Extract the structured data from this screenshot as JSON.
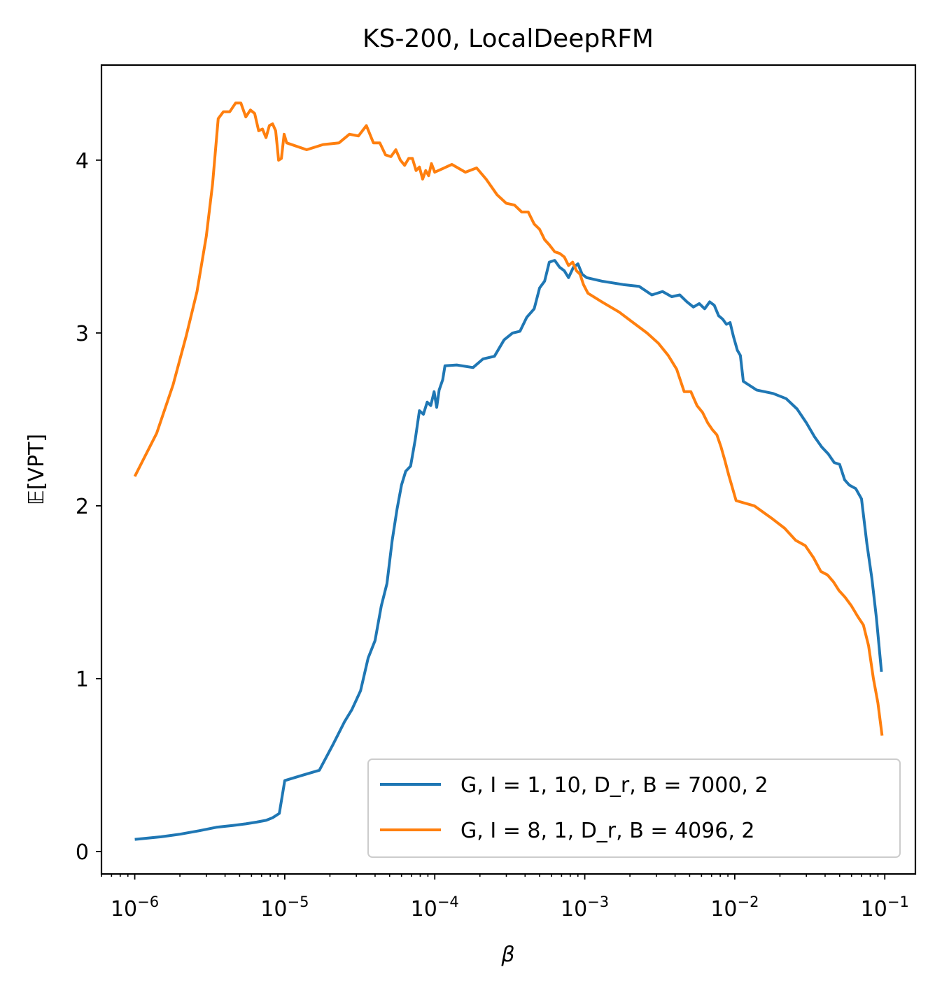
{
  "chart_data": {
    "type": "line",
    "title": "KS-200, LocalDeepRFM",
    "xlabel": "β",
    "ylabel": "𝔼[VPT]",
    "xscale": "log",
    "xlim": [
      6e-07,
      0.16
    ],
    "ylim": [
      -0.13,
      4.55
    ],
    "x_ticks": [
      {
        "value": 1e-06,
        "base": "10",
        "exp": "−6"
      },
      {
        "value": 1e-05,
        "base": "10",
        "exp": "−5"
      },
      {
        "value": 0.0001,
        "base": "10",
        "exp": "−4"
      },
      {
        "value": 0.001,
        "base": "10",
        "exp": "−3"
      },
      {
        "value": 0.01,
        "base": "10",
        "exp": "−2"
      },
      {
        "value": 0.1,
        "base": "10",
        "exp": "−1"
      }
    ],
    "y_ticks": [
      {
        "value": 0,
        "label": "0"
      },
      {
        "value": 1,
        "label": "1"
      },
      {
        "value": 2,
        "label": "2"
      },
      {
        "value": 3,
        "label": "3"
      },
      {
        "value": 4,
        "label": "4"
      }
    ],
    "grid": false,
    "legend_position": "lower right",
    "series": [
      {
        "name": "G, I = 1, 10, D_r, B = 7000, 2",
        "color": "#1f77b4",
        "points": [
          [
            1e-06,
            0.07
          ],
          [
            1.5e-06,
            0.085
          ],
          [
            2e-06,
            0.1
          ],
          [
            2.7e-06,
            0.12
          ],
          [
            3.5e-06,
            0.14
          ],
          [
            4.5e-06,
            0.15
          ],
          [
            5.5e-06,
            0.16
          ],
          [
            6.5e-06,
            0.17
          ],
          [
            7.5e-06,
            0.18
          ],
          [
            8.3e-06,
            0.195
          ],
          [
            9.2e-06,
            0.22
          ],
          [
            1e-05,
            0.41
          ],
          [
            1.3e-05,
            0.44
          ],
          [
            1.7e-05,
            0.47
          ],
          [
            2.1e-05,
            0.62
          ],
          [
            2.5e-05,
            0.75
          ],
          [
            2.8e-05,
            0.82
          ],
          [
            3.2e-05,
            0.93
          ],
          [
            3.6e-05,
            1.12
          ],
          [
            4e-05,
            1.22
          ],
          [
            4.4e-05,
            1.42
          ],
          [
            4.8e-05,
            1.55
          ],
          [
            5.2e-05,
            1.8
          ],
          [
            5.6e-05,
            1.98
          ],
          [
            6e-05,
            2.12
          ],
          [
            6.4e-05,
            2.2
          ],
          [
            6.9e-05,
            2.23
          ],
          [
            7.4e-05,
            2.38
          ],
          [
            7.9e-05,
            2.55
          ],
          [
            8.4e-05,
            2.53
          ],
          [
            8.9e-05,
            2.6
          ],
          [
            9.4e-05,
            2.58
          ],
          [
            9.9e-05,
            2.66
          ],
          [
            0.000103,
            2.57
          ],
          [
            0.000107,
            2.67
          ],
          [
            0.000113,
            2.73
          ],
          [
            0.000117,
            2.81
          ],
          [
            0.00014,
            2.815
          ],
          [
            0.00018,
            2.8
          ],
          [
            0.00021,
            2.85
          ],
          [
            0.00025,
            2.865
          ],
          [
            0.00029,
            2.96
          ],
          [
            0.00033,
            3.0
          ],
          [
            0.00037,
            3.01
          ],
          [
            0.00041,
            3.09
          ],
          [
            0.00046,
            3.14
          ],
          [
            0.0005,
            3.26
          ],
          [
            0.00054,
            3.3
          ],
          [
            0.00058,
            3.41
          ],
          [
            0.00063,
            3.42
          ],
          [
            0.00068,
            3.38
          ],
          [
            0.00073,
            3.36
          ],
          [
            0.00078,
            3.32
          ],
          [
            0.00084,
            3.38
          ],
          [
            0.0009,
            3.4
          ],
          [
            0.00096,
            3.34
          ],
          [
            0.00103,
            3.32
          ],
          [
            0.0013,
            3.3
          ],
          [
            0.0018,
            3.28
          ],
          [
            0.0023,
            3.27
          ],
          [
            0.0028,
            3.22
          ],
          [
            0.0033,
            3.24
          ],
          [
            0.0038,
            3.21
          ],
          [
            0.0043,
            3.22
          ],
          [
            0.0048,
            3.18
          ],
          [
            0.0053,
            3.15
          ],
          [
            0.0058,
            3.17
          ],
          [
            0.0063,
            3.14
          ],
          [
            0.0068,
            3.18
          ],
          [
            0.0073,
            3.16
          ],
          [
            0.0078,
            3.1
          ],
          [
            0.0083,
            3.08
          ],
          [
            0.0088,
            3.05
          ],
          [
            0.0093,
            3.06
          ],
          [
            0.0098,
            2.98
          ],
          [
            0.0104,
            2.9
          ],
          [
            0.0109,
            2.87
          ],
          [
            0.0114,
            2.72
          ],
          [
            0.014,
            2.67
          ],
          [
            0.018,
            2.65
          ],
          [
            0.022,
            2.62
          ],
          [
            0.026,
            2.56
          ],
          [
            0.03,
            2.48
          ],
          [
            0.034,
            2.4
          ],
          [
            0.038,
            2.34
          ],
          [
            0.042,
            2.3
          ],
          [
            0.046,
            2.25
          ],
          [
            0.05,
            2.24
          ],
          [
            0.054,
            2.15
          ],
          [
            0.058,
            2.12
          ],
          [
            0.064,
            2.1
          ],
          [
            0.07,
            2.04
          ],
          [
            0.076,
            1.78
          ],
          [
            0.082,
            1.58
          ],
          [
            0.088,
            1.35
          ],
          [
            0.095,
            1.04
          ]
        ]
      },
      {
        "name": "G, I = 8, 1, D_r, B = 4096, 2",
        "color": "#ff7f0e",
        "points": [
          [
            1e-06,
            2.17
          ],
          [
            1.4e-06,
            2.42
          ],
          [
            1.8e-06,
            2.7
          ],
          [
            2.2e-06,
            2.98
          ],
          [
            2.6e-06,
            3.24
          ],
          [
            3e-06,
            3.56
          ],
          [
            3.3e-06,
            3.86
          ],
          [
            3.6e-06,
            4.24
          ],
          [
            3.9e-06,
            4.28
          ],
          [
            4.3e-06,
            4.28
          ],
          [
            4.7e-06,
            4.33
          ],
          [
            5.1e-06,
            4.33
          ],
          [
            5.5e-06,
            4.25
          ],
          [
            5.9e-06,
            4.29
          ],
          [
            6.3e-06,
            4.27
          ],
          [
            6.7e-06,
            4.17
          ],
          [
            7.1e-06,
            4.18
          ],
          [
            7.5e-06,
            4.13
          ],
          [
            7.9e-06,
            4.2
          ],
          [
            8.3e-06,
            4.21
          ],
          [
            8.7e-06,
            4.17
          ],
          [
            9.1e-06,
            4.0
          ],
          [
            9.5e-06,
            4.01
          ],
          [
            9.9e-06,
            4.15
          ],
          [
            1.03e-05,
            4.1
          ],
          [
            1.4e-05,
            4.06
          ],
          [
            1.8e-05,
            4.09
          ],
          [
            2.3e-05,
            4.1
          ],
          [
            2.7e-05,
            4.15
          ],
          [
            3.1e-05,
            4.14
          ],
          [
            3.5e-05,
            4.2
          ],
          [
            3.9e-05,
            4.1
          ],
          [
            4.3e-05,
            4.1
          ],
          [
            4.7e-05,
            4.03
          ],
          [
            5.1e-05,
            4.02
          ],
          [
            5.5e-05,
            4.06
          ],
          [
            5.9e-05,
            4.0
          ],
          [
            6.3e-05,
            3.97
          ],
          [
            6.7e-05,
            4.01
          ],
          [
            7.1e-05,
            4.01
          ],
          [
            7.5e-05,
            3.94
          ],
          [
            7.9e-05,
            3.96
          ],
          [
            8.3e-05,
            3.89
          ],
          [
            8.7e-05,
            3.94
          ],
          [
            9.1e-05,
            3.91
          ],
          [
            9.5e-05,
            3.98
          ],
          [
            0.0001,
            3.93
          ],
          [
            0.00013,
            3.975
          ],
          [
            0.00016,
            3.93
          ],
          [
            0.00019,
            3.955
          ],
          [
            0.00022,
            3.89
          ],
          [
            0.00026,
            3.8
          ],
          [
            0.0003,
            3.75
          ],
          [
            0.00034,
            3.74
          ],
          [
            0.00038,
            3.7
          ],
          [
            0.00042,
            3.7
          ],
          [
            0.00046,
            3.63
          ],
          [
            0.0005,
            3.6
          ],
          [
            0.00054,
            3.54
          ],
          [
            0.00058,
            3.51
          ],
          [
            0.00063,
            3.47
          ],
          [
            0.00068,
            3.46
          ],
          [
            0.00073,
            3.44
          ],
          [
            0.00078,
            3.39
          ],
          [
            0.00083,
            3.41
          ],
          [
            0.00088,
            3.36
          ],
          [
            0.00093,
            3.34
          ],
          [
            0.00098,
            3.28
          ],
          [
            0.00105,
            3.23
          ],
          [
            0.0013,
            3.18
          ],
          [
            0.0017,
            3.12
          ],
          [
            0.0021,
            3.06
          ],
          [
            0.0026,
            3.0
          ],
          [
            0.0031,
            2.94
          ],
          [
            0.0036,
            2.87
          ],
          [
            0.0041,
            2.79
          ],
          [
            0.0046,
            2.66
          ],
          [
            0.0051,
            2.66
          ],
          [
            0.0056,
            2.58
          ],
          [
            0.0061,
            2.54
          ],
          [
            0.0066,
            2.48
          ],
          [
            0.0071,
            2.44
          ],
          [
            0.0076,
            2.41
          ],
          [
            0.0081,
            2.34
          ],
          [
            0.0086,
            2.26
          ],
          [
            0.0091,
            2.18
          ],
          [
            0.0096,
            2.11
          ],
          [
            0.0102,
            2.03
          ],
          [
            0.0135,
            2.0
          ],
          [
            0.0175,
            1.93
          ],
          [
            0.0215,
            1.87
          ],
          [
            0.0255,
            1.8
          ],
          [
            0.0295,
            1.77
          ],
          [
            0.0335,
            1.7
          ],
          [
            0.0375,
            1.62
          ],
          [
            0.0415,
            1.6
          ],
          [
            0.0455,
            1.56
          ],
          [
            0.0495,
            1.51
          ],
          [
            0.0545,
            1.47
          ],
          [
            0.06,
            1.42
          ],
          [
            0.066,
            1.36
          ],
          [
            0.072,
            1.31
          ],
          [
            0.078,
            1.19
          ],
          [
            0.084,
            1.0
          ],
          [
            0.09,
            0.86
          ],
          [
            0.096,
            0.67
          ]
        ]
      }
    ]
  }
}
